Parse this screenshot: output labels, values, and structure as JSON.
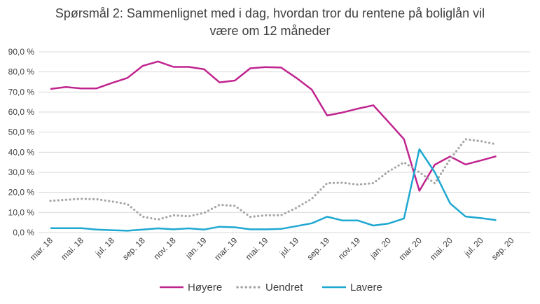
{
  "chart_data": {
    "type": "line",
    "title": "Spørsmål 2: Sammenlignet  med i dag, hvordan tror du rentene på boliglån vil være om 12 måneder",
    "title_lines": [
      "Spørsmål 2: Sammenlignet  med i dag, hvordan tror du rentene på boliglån vil",
      "være om 12 måneder"
    ],
    "xlabel": "",
    "ylabel": "",
    "ylim": [
      0,
      90
    ],
    "y_ticks": [
      0,
      10,
      20,
      30,
      40,
      50,
      60,
      70,
      80,
      90
    ],
    "y_tick_labels": [
      "0,0 %",
      "10,0 %",
      "20,0 %",
      "30,0 %",
      "40,0 %",
      "50,0 %",
      "60,0 %",
      "70,0 %",
      "80,0 %",
      "90,0 %"
    ],
    "x": [
      "2018-03",
      "2018-04",
      "2018-05",
      "2018-06",
      "2018-07",
      "2018-08",
      "2018-09",
      "2018-10",
      "2018-11",
      "2018-12",
      "2019-01",
      "2019-02",
      "2019-03",
      "2019-04",
      "2019-05",
      "2019-06",
      "2019-07",
      "2019-08",
      "2019-09",
      "2019-10",
      "2019-11",
      "2019-12",
      "2020-01",
      "2020-02",
      "2020-03",
      "2020-04",
      "2020-05",
      "2020-06",
      "2020-07",
      "2020-08"
    ],
    "x_tick_labels": [
      "mar. 18",
      "mai. 18",
      "jul. 18",
      "sep. 18",
      "nov. 18",
      "jan. 19",
      "mar. 19",
      "mai. 19",
      "jul. 19",
      "sep. 19",
      "nov. 19",
      "jan. 20",
      "mar. 20",
      "mai. 20",
      "jul. 20",
      "sep. 20"
    ],
    "grid": true,
    "legend_position": "bottom",
    "series": [
      {
        "name": "Høyere",
        "color": "#c0248f",
        "style": "solid",
        "values": [
          71.5,
          72.5,
          71.8,
          71.8,
          74.5,
          77.0,
          83.0,
          85.2,
          82.5,
          82.5,
          81.3,
          74.8,
          75.7,
          81.8,
          82.4,
          82.2,
          77.0,
          71.2,
          58.3,
          59.8,
          61.7,
          63.4,
          55.0,
          46.5,
          20.8,
          33.8,
          37.9,
          33.9,
          35.9,
          38.0
        ]
      },
      {
        "name": "Uendret",
        "color": "#a6a6a6",
        "style": "dotted",
        "values": [
          15.8,
          16.3,
          16.8,
          16.6,
          15.5,
          14.2,
          7.9,
          6.5,
          8.6,
          8.1,
          9.8,
          13.8,
          13.3,
          7.8,
          8.6,
          8.6,
          12.3,
          16.8,
          24.6,
          24.8,
          23.9,
          24.6,
          30.5,
          35.0,
          30.0,
          24.5,
          36.5,
          46.5,
          45.5,
          44.0
        ]
      },
      {
        "name": "Lavere",
        "color": "#1fa8d1",
        "style": "solid",
        "values": [
          2.2,
          2.2,
          2.2,
          1.5,
          1.2,
          0.9,
          1.5,
          2.1,
          1.6,
          2.1,
          1.5,
          2.9,
          2.6,
          1.6,
          1.6,
          1.8,
          3.2,
          4.6,
          7.9,
          6.0,
          6.0,
          3.5,
          4.5,
          7.0,
          41.5,
          30.0,
          14.5,
          8.0,
          7.2,
          6.2
        ]
      }
    ]
  }
}
